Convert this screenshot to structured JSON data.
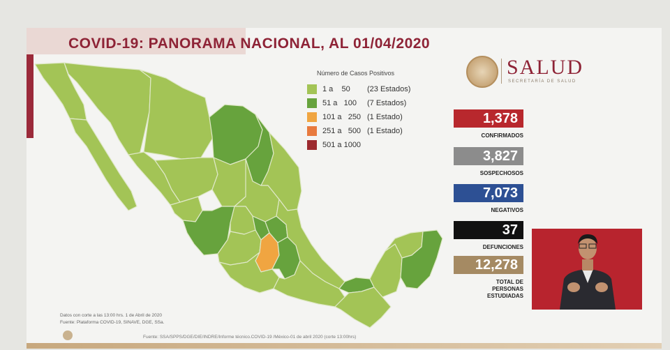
{
  "title": "COVID-19: PANORAMA NACIONAL, AL 01/04/2020",
  "logo": {
    "name": "SALUD",
    "subtitle": "SECRETARÍA DE SALUD"
  },
  "legend": {
    "title": "Número de Casos Positivos",
    "items": [
      {
        "range": "1 a    50",
        "count": "(23 Estados)",
        "color": "#a3c456"
      },
      {
        "range": "51 a   100",
        "count": "(7 Estados)",
        "color": "#67a33d"
      },
      {
        "range": "101 a   250",
        "count": "(1 Estado)",
        "color": "#f0a541"
      },
      {
        "range": "251 a   500",
        "count": "(1 Estado)",
        "color": "#e87a3e"
      },
      {
        "range": "501 a 1000",
        "count": "",
        "color": "#9c2a2f"
      }
    ]
  },
  "stats": [
    {
      "value": "1,378",
      "label": "CONFIRMADOS",
      "color": "#b8282d"
    },
    {
      "value": "3,827",
      "label": "SOSPECHOSOS",
      "color": "#8c8c8c"
    },
    {
      "value": "7,073",
      "label": "NEGATIVOS",
      "color": "#2d5094"
    },
    {
      "value": "37",
      "label": "DEFUNCIONES",
      "color": "#111111"
    },
    {
      "value": "12,278",
      "label": "TOTAL DE PERSONAS ESTUDIADAS",
      "color": "#a58a63"
    }
  ],
  "footnote": {
    "line1": "Datos con corte a las 13:00 hrs. 1 de Abril de 2020",
    "line2": "Fuente: Plataforma COVID-19, SINAVE, DGE, SSa."
  },
  "source": "Fuente: SSA/SPPS/DGE/DIE/INDRE/Informe técnico.COVID-19 /México-01 de abril 2020 (corte 13:00hrs)"
}
